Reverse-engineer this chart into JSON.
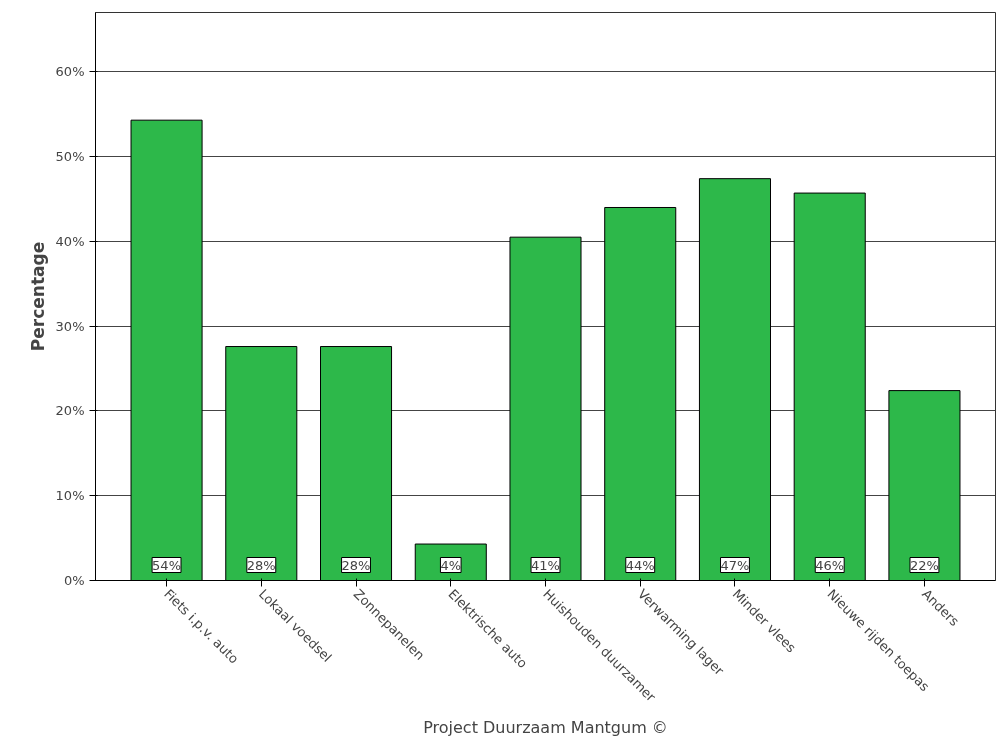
{
  "chart_data": {
    "type": "bar",
    "xlabel": "Project Duurzaam Mantgum ©",
    "ylabel": "Percentage",
    "categories": [
      "Fiets i.p.v. auto",
      "Lokaal voedsel",
      "Zonnepanelen",
      "Elektrische auto",
      "Huishouden duurzamer",
      "Verwarming lager",
      "Minder vlees",
      "Nieuwe rijden toepas",
      "Anders"
    ],
    "values": [
      54.3,
      27.6,
      27.6,
      4.3,
      40.5,
      44.0,
      47.4,
      45.7,
      22.4
    ],
    "value_labels": [
      "54%",
      "28%",
      "28%",
      "4%",
      "41%",
      "44%",
      "47%",
      "46%",
      "22%"
    ],
    "color": "#2db84a",
    "ylim": [
      0,
      67
    ],
    "yticks": [
      {
        "value": 0,
        "label": "0%"
      },
      {
        "value": 10,
        "label": "10%"
      },
      {
        "value": 20,
        "label": "20%"
      },
      {
        "value": 30,
        "label": "30%"
      },
      {
        "value": 40,
        "label": "40%"
      },
      {
        "value": 50,
        "label": "50%"
      },
      {
        "value": 60,
        "label": "60%"
      }
    ],
    "grid": "y"
  }
}
